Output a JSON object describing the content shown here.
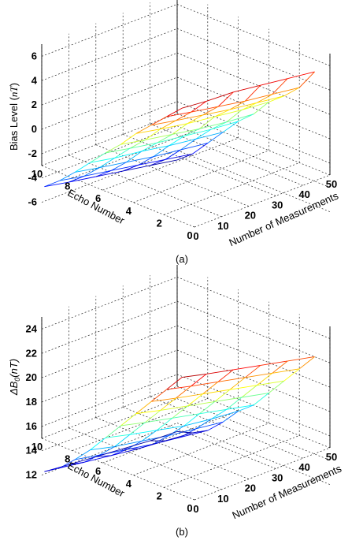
{
  "chart_data": [
    {
      "type": "surface",
      "caption": "(a)",
      "xlabel": "Number of Measurements",
      "ylabel": "Echo Number",
      "zlabel": "Bias Level (nT)",
      "xticks": [
        0,
        10,
        20,
        30,
        40,
        50
      ],
      "yticks": [
        0,
        2,
        4,
        6,
        8,
        10
      ],
      "zticks": [
        -6,
        -4,
        -2,
        0,
        2,
        4,
        6
      ],
      "xlim": [
        0,
        50
      ],
      "ylim": [
        0,
        10
      ],
      "zlim": [
        -7,
        7
      ],
      "grid": true,
      "colormap": "jet",
      "series": [
        {
          "echo": 1,
          "x": [
            1,
            10,
            20,
            30,
            40,
            50
          ],
          "z": [
            6.2,
            6.0,
            5.9,
            5.6,
            5.3,
            5.0
          ]
        },
        {
          "echo": 2,
          "x": [
            1,
            10,
            20,
            30,
            40,
            50
          ],
          "z": [
            5.0,
            4.6,
            4.2,
            3.8,
            3.5,
            3.2
          ]
        },
        {
          "echo": 3,
          "x": [
            1,
            10,
            20,
            30,
            40,
            50
          ],
          "z": [
            3.8,
            3.4,
            3.0,
            2.6,
            2.3,
            2.0
          ]
        },
        {
          "echo": 4,
          "x": [
            1,
            10,
            20,
            30,
            40,
            50
          ],
          "z": [
            2.6,
            2.2,
            1.8,
            1.5,
            1.2,
            1.0
          ]
        },
        {
          "echo": 5,
          "x": [
            1,
            10,
            20,
            30,
            40,
            50
          ],
          "z": [
            1.2,
            0.8,
            0.4,
            0.0,
            -0.3,
            -0.5
          ]
        },
        {
          "echo": 6,
          "x": [
            1,
            10,
            20,
            30,
            40,
            50
          ],
          "z": [
            0.0,
            -0.4,
            -0.8,
            -1.1,
            -1.4,
            -1.6
          ]
        },
        {
          "echo": 7,
          "x": [
            1,
            10,
            20,
            30,
            40,
            50
          ],
          "z": [
            -1.3,
            -1.7,
            -2.0,
            -2.4,
            -2.7,
            -3.0
          ]
        },
        {
          "echo": 8,
          "x": [
            1,
            10,
            20,
            30,
            40,
            50
          ],
          "z": [
            -2.6,
            -3.0,
            -3.4,
            -3.8,
            -4.1,
            -4.4
          ]
        },
        {
          "echo": 9,
          "x": [
            1,
            10,
            20,
            30,
            40,
            50
          ],
          "z": [
            -3.8,
            -4.2,
            -4.6,
            -5.0,
            -5.4,
            -5.8
          ]
        },
        {
          "echo": 10,
          "x": [
            1,
            10,
            20,
            30,
            40,
            50
          ],
          "z": [
            -4.8,
            -5.2,
            -5.6,
            -6.0,
            -6.4,
            -6.8
          ]
        }
      ]
    },
    {
      "type": "surface",
      "caption": "(b)",
      "xlabel": "Number of Measurements",
      "ylabel": "Echo Number",
      "zlabel": "ΔB0(nT)",
      "xticks": [
        0,
        10,
        20,
        30,
        40,
        50
      ],
      "yticks": [
        0,
        2,
        4,
        6,
        8,
        10
      ],
      "zticks": [
        12,
        14,
        16,
        18,
        20,
        22,
        24
      ],
      "xlim": [
        0,
        50
      ],
      "ylim": [
        0,
        10
      ],
      "zlim": [
        11,
        25
      ],
      "grid": true,
      "colormap": "jet",
      "series": [
        {
          "echo": 1,
          "x": [
            1,
            10,
            20,
            30,
            40,
            50
          ],
          "z": [
            24.5,
            24.0,
            23.5,
            23.0,
            22.5,
            22.0
          ]
        },
        {
          "echo": 2,
          "x": [
            1,
            10,
            20,
            30,
            40,
            50
          ],
          "z": [
            23.0,
            22.5,
            22.0,
            21.5,
            21.0,
            20.5
          ]
        },
        {
          "echo": 3,
          "x": [
            1,
            10,
            20,
            30,
            40,
            50
          ],
          "z": [
            21.5,
            21.0,
            20.5,
            20.0,
            19.5,
            19.0
          ]
        },
        {
          "echo": 4,
          "x": [
            1,
            10,
            20,
            30,
            40,
            50
          ],
          "z": [
            20.0,
            19.5,
            19.0,
            18.5,
            18.0,
            17.5
          ]
        },
        {
          "echo": 5,
          "x": [
            1,
            10,
            20,
            30,
            40,
            50
          ],
          "z": [
            18.5,
            18.0,
            17.5,
            17.0,
            16.5,
            16.0
          ]
        },
        {
          "echo": 6,
          "x": [
            1,
            10,
            20,
            30,
            40,
            50
          ],
          "z": [
            17.0,
            16.5,
            16.0,
            15.5,
            15.2,
            15.0
          ]
        },
        {
          "echo": 7,
          "x": [
            1,
            10,
            20,
            30,
            40,
            50
          ],
          "z": [
            15.5,
            15.0,
            14.6,
            14.2,
            13.9,
            13.6
          ]
        },
        {
          "echo": 8,
          "x": [
            1,
            10,
            20,
            30,
            40,
            50
          ],
          "z": [
            14.2,
            13.8,
            13.4,
            13.0,
            12.7,
            12.4
          ]
        },
        {
          "echo": 9,
          "x": [
            1,
            10,
            20,
            30,
            40,
            50
          ],
          "z": [
            13.0,
            12.7,
            12.4,
            12.1,
            11.9,
            11.7
          ]
        },
        {
          "echo": 10,
          "x": [
            1,
            10,
            20,
            30,
            40,
            50
          ],
          "z": [
            12.2,
            12.0,
            11.8,
            11.6,
            11.4,
            11.3
          ]
        }
      ]
    }
  ]
}
